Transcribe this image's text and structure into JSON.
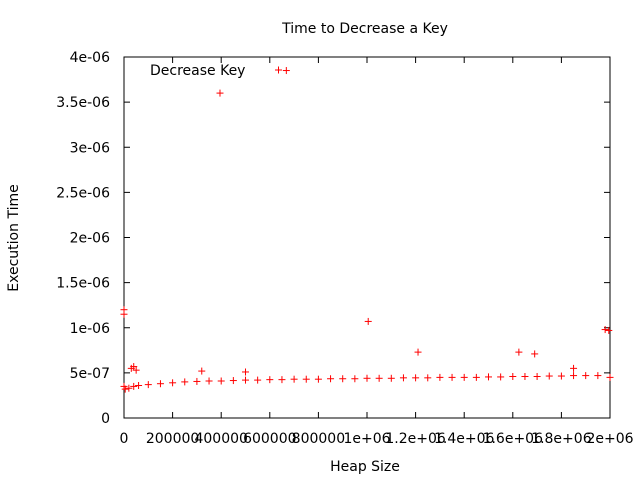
{
  "chart_data": {
    "type": "scatter",
    "title": "Time to Decrease a Key",
    "xlabel": "Heap Size",
    "ylabel": "Execution Time",
    "xlim": [
      0,
      2000000
    ],
    "ylim": [
      0,
      4e-06
    ],
    "grid": false,
    "legend_position": "top-left",
    "x_tick_values": [
      0,
      200000,
      400000,
      600000,
      800000,
      1000000,
      1200000,
      1400000,
      1600000,
      1800000,
      2000000
    ],
    "x_tick_labels": [
      "0",
      "200000",
      "400000",
      "600000",
      "800000",
      "1e+06",
      "1.2e+06",
      "1.4e+06",
      "1.6e+06",
      "1.8e+06",
      "2e+06"
    ],
    "y_tick_values": [
      0,
      5e-07,
      1e-06,
      1.5e-06,
      2e-06,
      2.5e-06,
      3e-06,
      3.5e-06,
      4e-06
    ],
    "y_tick_labels": [
      "0",
      "5e-07",
      "1e-06",
      "1.5e-06",
      "2e-06",
      "2.5e-06",
      "3e-06",
      "3.5e-06",
      "4e-06"
    ],
    "marker_color": "#ff0000",
    "series": [
      {
        "name": "Decrease Key",
        "marker": "plus",
        "x": [
          0,
          0,
          20000,
          40000,
          60000,
          100000,
          150000,
          200000,
          250000,
          300000,
          350000,
          400000,
          450000,
          500000,
          550000,
          600000,
          650000,
          700000,
          750000,
          800000,
          850000,
          900000,
          950000,
          1000000,
          1050000,
          1100000,
          1150000,
          1200000,
          1250000,
          1300000,
          1350000,
          1400000,
          1450000,
          1500000,
          1550000,
          1600000,
          1650000,
          1700000,
          1750000,
          1800000,
          1850000,
          1900000,
          1950000,
          2000000,
          395000,
          668000,
          1005000,
          1210000,
          1625000,
          1690000,
          1980000,
          1995000,
          0,
          5000,
          30000,
          40000,
          50000,
          320000,
          500000,
          1850000
        ],
        "y": [
          1.2e-06,
          1.15e-06,
          3.3e-07,
          3.5e-07,
          3.6e-07,
          3.7e-07,
          3.8e-07,
          3.9e-07,
          4e-07,
          4.05e-07,
          4.1e-07,
          4.1e-07,
          4.15e-07,
          4.2e-07,
          4.2e-07,
          4.25e-07,
          4.25e-07,
          4.3e-07,
          4.3e-07,
          4.3e-07,
          4.35e-07,
          4.35e-07,
          4.35e-07,
          4.4e-07,
          4.4e-07,
          4.4e-07,
          4.45e-07,
          4.45e-07,
          4.45e-07,
          4.5e-07,
          4.5e-07,
          4.5e-07,
          4.5e-07,
          4.55e-07,
          4.55e-07,
          4.6e-07,
          4.6e-07,
          4.6e-07,
          4.65e-07,
          4.65e-07,
          4.7e-07,
          4.7e-07,
          4.7e-07,
          4.5e-07,
          3.6e-06,
          3.85e-06,
          1.07e-06,
          7.3e-07,
          7.3e-07,
          7.1e-07,
          9.8e-07,
          9.7e-07,
          3.5e-07,
          3.2e-07,
          5.5e-07,
          5.7e-07,
          5.3e-07,
          5.2e-07,
          5.1e-07,
          5.5e-07
        ]
      }
    ]
  }
}
